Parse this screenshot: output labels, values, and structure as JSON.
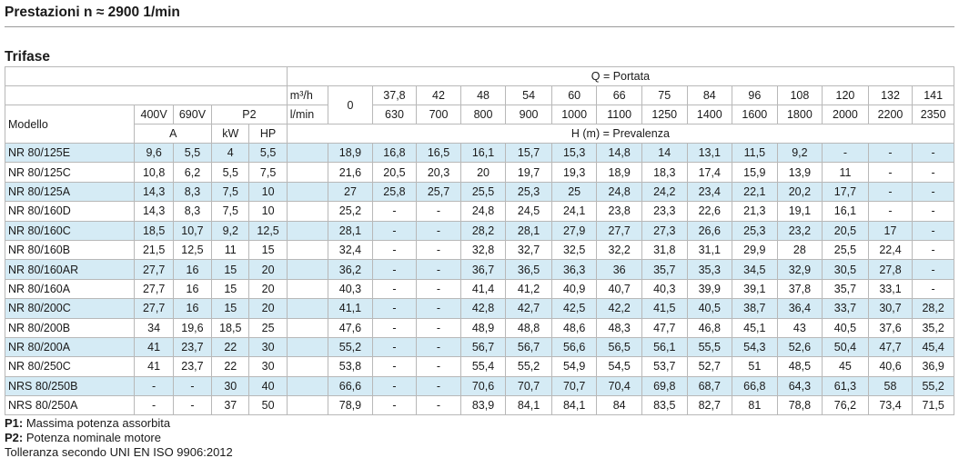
{
  "title": "Prestazioni n ≈ 2900 1/min",
  "section": "Trifase",
  "header": {
    "q_label": "Q = Portata",
    "unit_m3h": "m³/h",
    "unit_lmin": "l/min",
    "zero": "0",
    "m3h": [
      "37,8",
      "42",
      "48",
      "54",
      "60",
      "66",
      "75",
      "84",
      "96",
      "108",
      "120",
      "132",
      "141"
    ],
    "lmin": [
      "630",
      "700",
      "800",
      "900",
      "1000",
      "1100",
      "1250",
      "1400",
      "1600",
      "1800",
      "2000",
      "2200",
      "2350"
    ],
    "model": "Modello",
    "v400": "400V",
    "v690": "690V",
    "p2": "P2",
    "amp": "A",
    "kw": "kW",
    "hp": "HP",
    "h_label": "H (m) = Prevalenza"
  },
  "rows": [
    {
      "model": "NR 80/125E",
      "c": [
        "9,6",
        "5,5",
        "4",
        "5,5",
        "18,9",
        "16,8",
        "16,5",
        "16,1",
        "15,7",
        "15,3",
        "14,8",
        "14",
        "13,1",
        "11,5",
        "9,2",
        "-",
        "-",
        "-"
      ]
    },
    {
      "model": "NR 80/125C",
      "c": [
        "10,8",
        "6,2",
        "5,5",
        "7,5",
        "21,6",
        "20,5",
        "20,3",
        "20",
        "19,7",
        "19,3",
        "18,9",
        "18,3",
        "17,4",
        "15,9",
        "13,9",
        "11",
        "-",
        "-"
      ]
    },
    {
      "model": "NR 80/125A",
      "c": [
        "14,3",
        "8,3",
        "7,5",
        "10",
        "27",
        "25,8",
        "25,7",
        "25,5",
        "25,3",
        "25",
        "24,8",
        "24,2",
        "23,4",
        "22,1",
        "20,2",
        "17,7",
        "-",
        "-"
      ]
    },
    {
      "model": "NR 80/160D",
      "c": [
        "14,3",
        "8,3",
        "7,5",
        "10",
        "25,2",
        "-",
        "-",
        "24,8",
        "24,5",
        "24,1",
        "23,8",
        "23,3",
        "22,6",
        "21,3",
        "19,1",
        "16,1",
        "-",
        "-"
      ]
    },
    {
      "model": "NR 80/160C",
      "c": [
        "18,5",
        "10,7",
        "9,2",
        "12,5",
        "28,1",
        "-",
        "-",
        "28,2",
        "28,1",
        "27,9",
        "27,7",
        "27,3",
        "26,6",
        "25,3",
        "23,2",
        "20,5",
        "17",
        "-"
      ]
    },
    {
      "model": "NR 80/160B",
      "c": [
        "21,5",
        "12,5",
        "11",
        "15",
        "32,4",
        "-",
        "-",
        "32,8",
        "32,7",
        "32,5",
        "32,2",
        "31,8",
        "31,1",
        "29,9",
        "28",
        "25,5",
        "22,4",
        "-"
      ]
    },
    {
      "model": "NR 80/160AR",
      "c": [
        "27,7",
        "16",
        "15",
        "20",
        "36,2",
        "-",
        "-",
        "36,7",
        "36,5",
        "36,3",
        "36",
        "35,7",
        "35,3",
        "34,5",
        "32,9",
        "30,5",
        "27,8",
        "-"
      ]
    },
    {
      "model": "NR 80/160A",
      "c": [
        "27,7",
        "16",
        "15",
        "20",
        "40,3",
        "-",
        "-",
        "41,4",
        "41,2",
        "40,9",
        "40,7",
        "40,3",
        "39,9",
        "39,1",
        "37,8",
        "35,7",
        "33,1",
        "-"
      ]
    },
    {
      "model": "NR 80/200C",
      "c": [
        "27,7",
        "16",
        "15",
        "20",
        "41,1",
        "-",
        "-",
        "42,8",
        "42,7",
        "42,5",
        "42,2",
        "41,5",
        "40,5",
        "38,7",
        "36,4",
        "33,7",
        "30,7",
        "28,2"
      ]
    },
    {
      "model": "NR 80/200B",
      "c": [
        "34",
        "19,6",
        "18,5",
        "25",
        "47,6",
        "-",
        "-",
        "48,9",
        "48,8",
        "48,6",
        "48,3",
        "47,7",
        "46,8",
        "45,1",
        "43",
        "40,5",
        "37,6",
        "35,2"
      ]
    },
    {
      "model": "NR 80/200A",
      "c": [
        "41",
        "23,7",
        "22",
        "30",
        "55,2",
        "-",
        "-",
        "56,7",
        "56,7",
        "56,6",
        "56,5",
        "56,1",
        "55,5",
        "54,3",
        "52,6",
        "50,4",
        "47,7",
        "45,4"
      ]
    },
    {
      "model": "NR 80/250C",
      "c": [
        "41",
        "23,7",
        "22",
        "30",
        "53,8",
        "-",
        "-",
        "55,4",
        "55,2",
        "54,9",
        "54,5",
        "53,7",
        "52,7",
        "51",
        "48,5",
        "45",
        "40,6",
        "36,9"
      ]
    },
    {
      "model": "NRS 80/250B",
      "c": [
        "-",
        "-",
        "30",
        "40",
        "66,6",
        "-",
        "-",
        "70,6",
        "70,7",
        "70,7",
        "70,4",
        "69,8",
        "68,7",
        "66,8",
        "64,3",
        "61,3",
        "58",
        "55,2"
      ]
    },
    {
      "model": "NRS 80/250A",
      "c": [
        "-",
        "-",
        "37",
        "50",
        "78,9",
        "-",
        "-",
        "83,9",
        "84,1",
        "84,1",
        "84",
        "83,5",
        "82,7",
        "81",
        "78,8",
        "76,2",
        "73,4",
        "71,5"
      ]
    }
  ],
  "legend": {
    "p1_key": "P1:",
    "p1_text": " Massima potenza assorbita",
    "p2_key": "P2:",
    "p2_text": " Potenza nominale motore",
    "tolerance": "Tolleranza secondo UNI EN ISO 9906:2012"
  },
  "colors": {
    "highlight_row": "#d5ebf5",
    "border": "#b8b8b8"
  }
}
